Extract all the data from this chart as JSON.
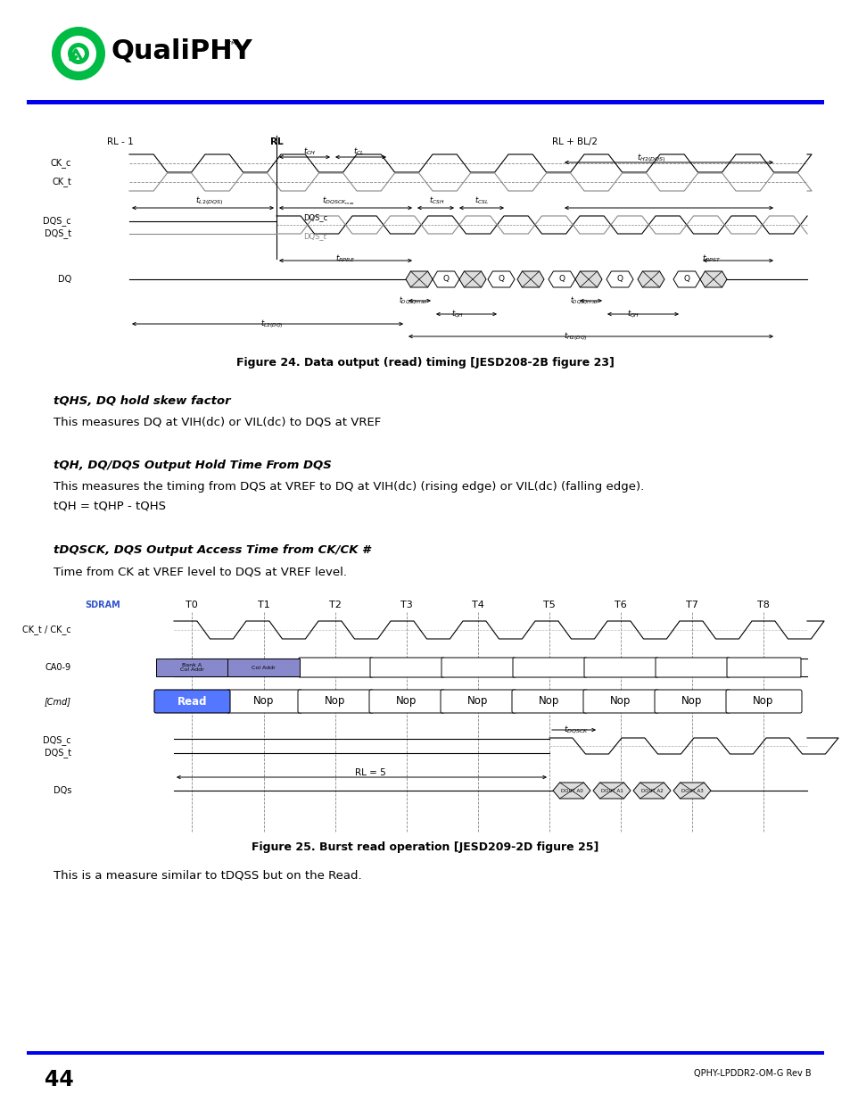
{
  "page_number": "44",
  "footer_right": "QPHY-LPDDR2-OM-G Rev B",
  "logo_text": "QualiPHY",
  "logo_tm": "™",
  "blue_line_color": "#0000CC",
  "figure24_caption": "Figure 24. Data output (read) timing [JESD208-2B figure 23]",
  "figure25_caption": "Figure 25. Burst read operation [JESD209-2D figure 25]",
  "section1_title": "tQHS, DQ hold skew factor",
  "section1_text": "This measures DQ at VIH(dc) or VIL(dc) to DQS at VREF",
  "section2_title": "tQH, DQ/DQS Output Hold Time From DQS",
  "section2_text1": "This measures the timing from DQS at VREF to DQ at VIH(dc) (rising edge) or VIL(dc) (falling edge).",
  "section2_text2": "tQH = tQHP - tQHS",
  "section3_title": "tDQSCK, DQS Output Access Time from CK/CK #",
  "section3_text": "Time from CK at VREF level to DQS at VREF level.",
  "last_text": "This is a measure similar to tDQSS but on the Read."
}
